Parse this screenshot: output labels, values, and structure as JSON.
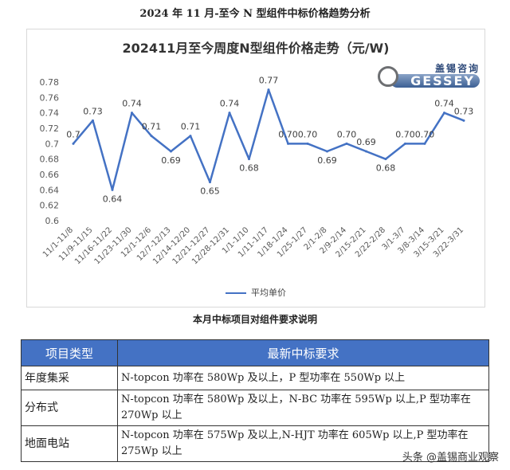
{
  "page": {
    "heading": "2024 年 11 月-至今 N 型组件中标价格趋势分析",
    "watermark": "头条 @盖锡商业观察"
  },
  "logo": {
    "top_text": "盖锡咨询",
    "word": "GESSEY"
  },
  "chart_data": {
    "type": "line",
    "title": "202411月至今周度N型组件价格走势（元/W)",
    "categories": [
      "11/1-11/8",
      "11/9-11/15",
      "11/16-11/22",
      "11/23-11/30",
      "12/1-12/6",
      "12/7-12/13",
      "12/14-12/20",
      "12/21-12/27",
      "12/28-12/31",
      "1/1-1/10",
      "1/11-1/17",
      "1/18-1/24",
      "1/25-1/27",
      "2/1-2/8",
      "2/9-2/14",
      "2/15-2/21",
      "2/22-2/28",
      "3/1-3/7",
      "3/8-3/14",
      "3/15-3/21",
      "3/22-3/31"
    ],
    "series": [
      {
        "name": "平均单价",
        "values": [
          0.7,
          0.73,
          0.64,
          0.74,
          0.71,
          0.69,
          0.71,
          0.65,
          0.74,
          0.68,
          0.77,
          0.7,
          0.7,
          0.69,
          0.7,
          0.69,
          0.68,
          0.7,
          0.7,
          0.74,
          0.73
        ],
        "labels": [
          "0.7",
          "0.73",
          "0.64",
          "0.74",
          "0.71",
          "0.69",
          "0.71",
          "0.65",
          "0.74",
          "0.68",
          "0.77",
          "0.70",
          "0.70",
          "0.69",
          "0.70",
          "0.69",
          "0.68",
          "0.70",
          "0.70",
          "0.74",
          "0.73"
        ]
      }
    ],
    "yticks": [
      "0.6",
      "0.62",
      "0.64",
      "0.66",
      "0.68",
      "0.7",
      "0.72",
      "0.74",
      "0.76",
      "0.78"
    ],
    "ylim": [
      0.6,
      0.78
    ],
    "grid": false,
    "legend": "bottom",
    "color": "#4472c4"
  },
  "table": {
    "title": "本月中标项目对组件要求说明",
    "headers": [
      "项目类型",
      "最新中标要求"
    ],
    "rows": [
      {
        "type": "年度集采",
        "req": "N-topcon 功率在 580Wp 及以上，P 型功率在 550Wp 以上"
      },
      {
        "type": "分布式",
        "req": "N-topcon 功率在 580Wp 及以上，N-BC 功率在 595Wp 以上,P 型功率在 270Wp 以上"
      },
      {
        "type": "地面电站",
        "req": "N-topcon 功率在 575Wp 及以上,N-HJT 功率在 605Wp 以上,P 型功率在 275Wp 以上"
      }
    ],
    "header_color": "#4472c4"
  }
}
